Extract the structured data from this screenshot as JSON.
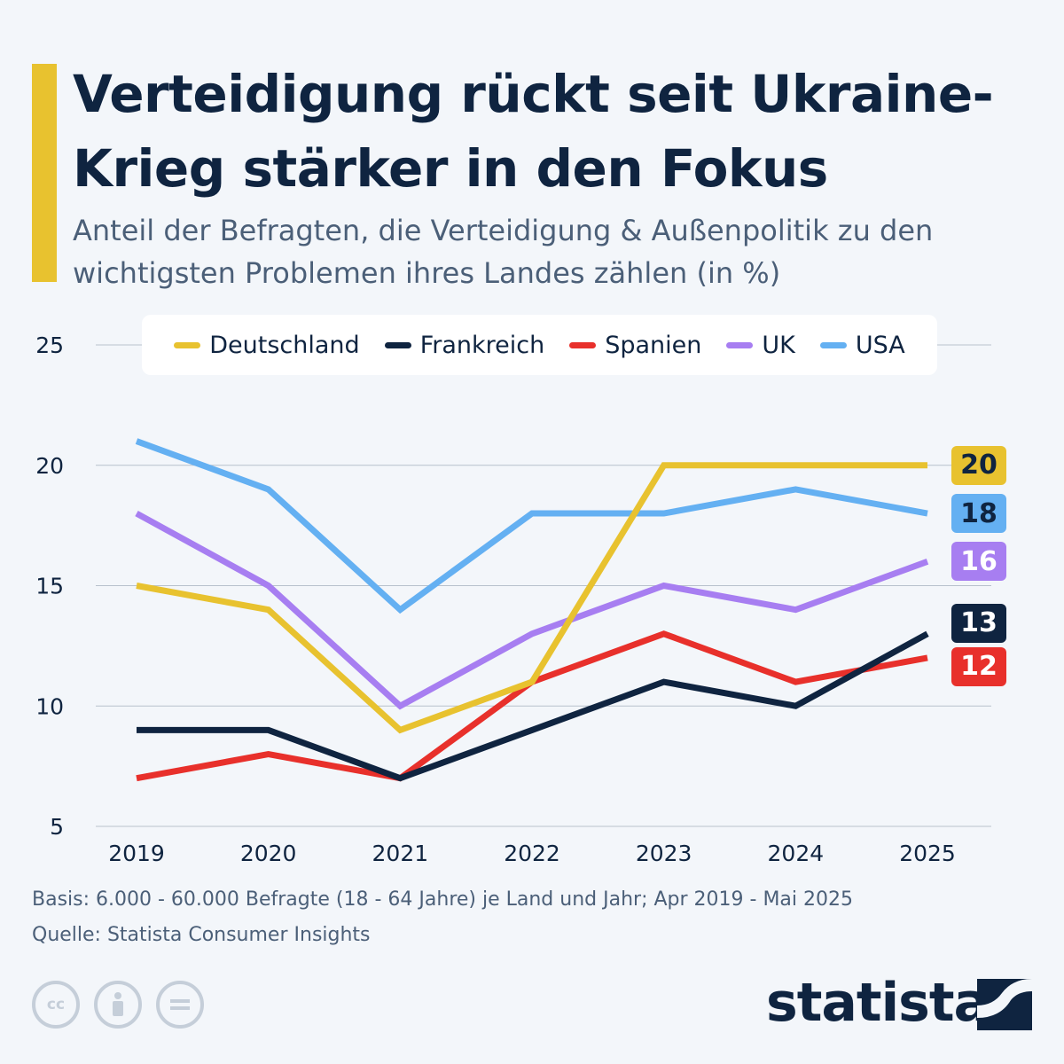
{
  "header": {
    "title": "Verteidigung rückt seit Ukraine-Krieg stärker in den Fokus",
    "subtitle": "Anteil der Befragten, die Verteidigung & Außenpolitik zu den wichtigsten Problemen ihres Landes zählen (in %)",
    "accent_color": "#e8c22f"
  },
  "chart_data": {
    "type": "line",
    "title": "",
    "x": [
      "2019",
      "2020",
      "2021",
      "2022",
      "2023",
      "2024",
      "2025"
    ],
    "ylim": [
      5,
      25
    ],
    "yticks": [
      5,
      10,
      15,
      20,
      25
    ],
    "grid": true,
    "legend_position": "top",
    "series": [
      {
        "name": "Deutschland",
        "color": "#e8c22f",
        "values": [
          15,
          14,
          9,
          11,
          20,
          20,
          20
        ]
      },
      {
        "name": "Frankreich",
        "color": "#0f2440",
        "values": [
          9,
          9,
          7,
          9,
          11,
          10,
          13
        ]
      },
      {
        "name": "Spanien",
        "color": "#e8302b",
        "values": [
          7,
          8,
          7,
          11,
          13,
          11,
          12
        ]
      },
      {
        "name": "UK",
        "color": "#a77ef1",
        "values": [
          18,
          15,
          10,
          13,
          15,
          14,
          16
        ]
      },
      {
        "name": "USA",
        "color": "#64b0f2",
        "values": [
          21,
          19,
          14,
          18,
          18,
          19,
          18
        ]
      }
    ],
    "end_labels": [
      {
        "series": "Deutschland",
        "text": "20",
        "bg": "#e8c22f",
        "fg": "#0f2440"
      },
      {
        "series": "USA",
        "text": "18",
        "bg": "#64b0f2",
        "fg": "#0f2440"
      },
      {
        "series": "UK",
        "text": "16",
        "bg": "#a77ef1",
        "fg": "#ffffff"
      },
      {
        "series": "Frankreich",
        "text": "13",
        "bg": "#0f2440",
        "fg": "#ffffff"
      },
      {
        "series": "Spanien",
        "text": "12",
        "bg": "#e8302b",
        "fg": "#ffffff"
      }
    ]
  },
  "footer": {
    "basis": "Basis: 6.000 - 60.000 Befragte (18 - 64 Jahre) je Land und Jahr; Apr 2019 - Mai 2025",
    "source": "Quelle: Statista Consumer Insights",
    "brand": "statista",
    "license_icons": [
      "creative-commons-icon",
      "attribution-icon",
      "no-derivatives-icon"
    ]
  }
}
